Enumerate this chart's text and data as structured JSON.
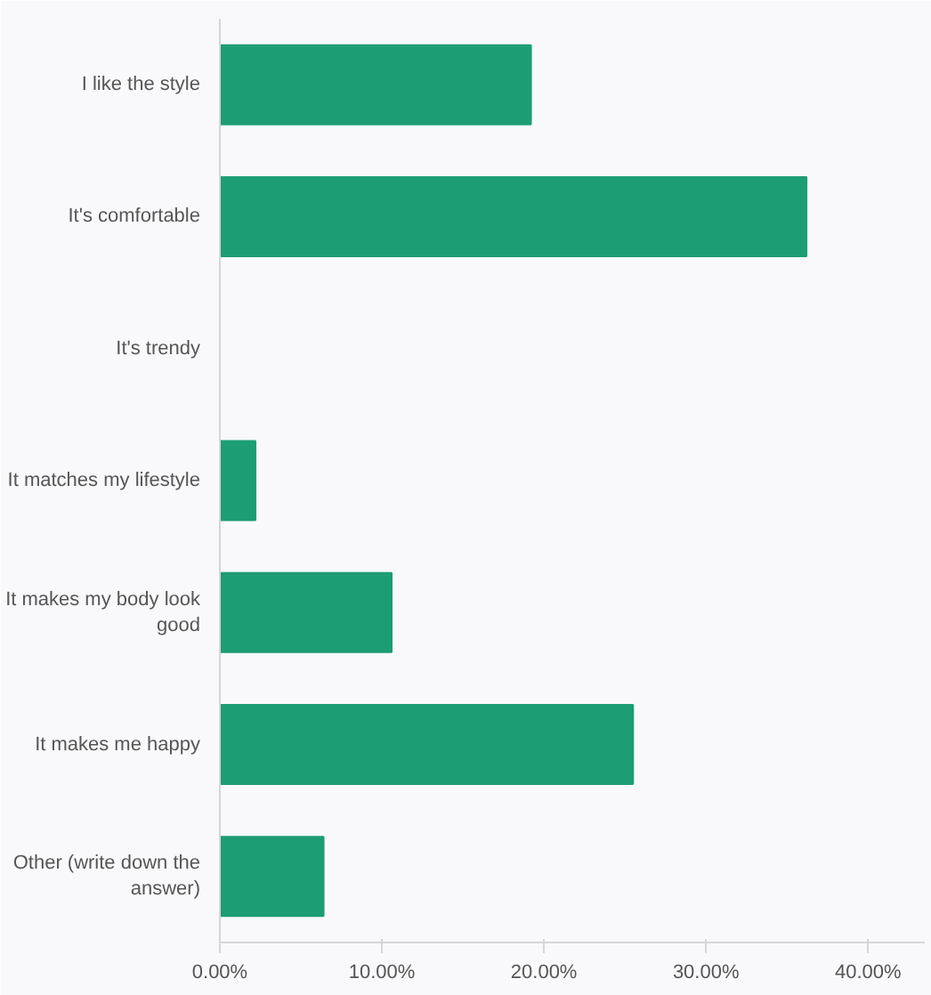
{
  "chart_data": {
    "type": "bar",
    "orientation": "horizontal",
    "categories": [
      "I like the style",
      "It's comfortable",
      "It's trendy",
      "It matches my lifestyle",
      "It makes my body look good",
      "It makes me happy",
      "Other (write down the answer)"
    ],
    "values": [
      19.2,
      36.2,
      0,
      2.2,
      10.6,
      25.5,
      6.4
    ],
    "color": "#1d9d74",
    "xlim": [
      0,
      43.5
    ],
    "xticks": [
      {
        "value": 0,
        "label": "0.00%"
      },
      {
        "value": 10,
        "label": "10.00%"
      },
      {
        "value": 20,
        "label": "20.00%"
      },
      {
        "value": 30,
        "label": "30.00%"
      },
      {
        "value": 40,
        "label": "40.00%"
      }
    ],
    "grid": false
  }
}
